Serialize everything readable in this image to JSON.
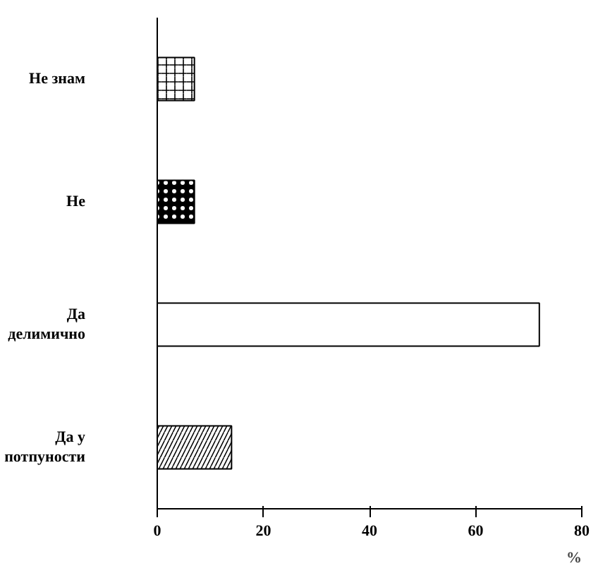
{
  "chart_data": {
    "type": "bar",
    "orientation": "horizontal",
    "xlabel": "%",
    "categories": [
      "Не знам",
      "Не",
      "Да делимично",
      "Да у потпуности"
    ],
    "values": [
      7,
      7,
      72,
      14
    ],
    "colors": [
      "#ffffff",
      "#000000",
      "#ffffff",
      "#ffffff"
    ],
    "xlim": [
      0,
      80
    ],
    "xticks": [
      0,
      20,
      40,
      60,
      80
    ],
    "grid": false
  }
}
